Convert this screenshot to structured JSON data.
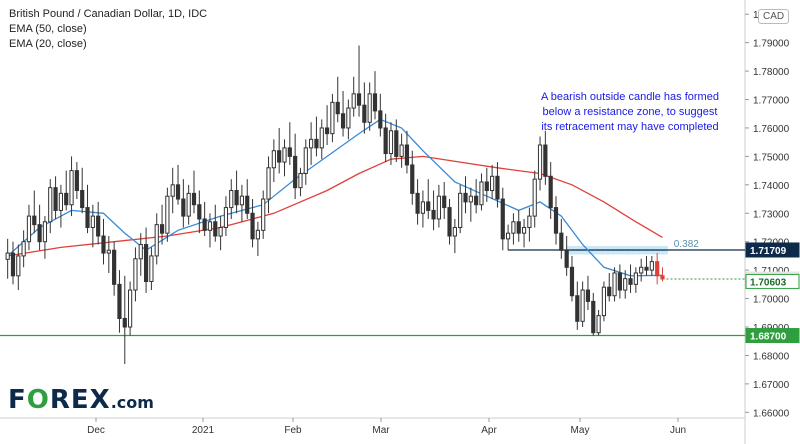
{
  "title": "British Pound / Canadian Dollar, 1D, IDC",
  "currency_badge": "CAD",
  "indicators": [
    "EMA (50, close)",
    "EMA (20, close)"
  ],
  "annotation": "A bearish outside candle has formed below a resistance zone, to suggest its retracement may have completed",
  "fib_label": "0.382",
  "logo": {
    "pre": "F",
    "o": "O",
    "post": "REX",
    "suffix": ".com"
  },
  "colors": {
    "up": "#333333",
    "down": "#333333",
    "ema50": "#e0403a",
    "ema20": "#3a8ad6",
    "resistance": "#0d2a4a",
    "support": "#2e9e3e",
    "last": "#e0403a",
    "zone": "#9ad0ec",
    "annotation": "#1a1ae6"
  },
  "chart_data": {
    "type": "candlestick",
    "x_labels": [
      "Dec",
      "2021",
      "Feb",
      "Mar",
      "Apr",
      "May",
      "Jun"
    ],
    "y_ticks": [
      1.66,
      1.67,
      1.68,
      1.69,
      1.7,
      1.71,
      1.72,
      1.73,
      1.74,
      1.75,
      1.76,
      1.77,
      1.78,
      1.79,
      1.8
    ],
    "ylim": [
      1.658,
      1.805
    ],
    "candle_count": 139,
    "candles": [
      {
        "i": 0,
        "o": 1.7138,
        "h": 1.721,
        "l": 1.707,
        "c": 1.716
      },
      {
        "i": 1,
        "o": 1.716,
        "h": 1.72,
        "l": 1.705,
        "c": 1.708
      },
      {
        "i": 2,
        "o": 1.708,
        "h": 1.719,
        "l": 1.703,
        "c": 1.715
      },
      {
        "i": 3,
        "o": 1.715,
        "h": 1.724,
        "l": 1.711,
        "c": 1.72
      },
      {
        "i": 4,
        "o": 1.72,
        "h": 1.733,
        "l": 1.717,
        "c": 1.729
      },
      {
        "i": 5,
        "o": 1.729,
        "h": 1.738,
        "l": 1.723,
        "c": 1.726
      },
      {
        "i": 6,
        "o": 1.726,
        "h": 1.733,
        "l": 1.717,
        "c": 1.72
      },
      {
        "i": 7,
        "o": 1.72,
        "h": 1.729,
        "l": 1.714,
        "c": 1.727
      },
      {
        "i": 8,
        "o": 1.727,
        "h": 1.742,
        "l": 1.723,
        "c": 1.739
      },
      {
        "i": 9,
        "o": 1.739,
        "h": 1.743,
        "l": 1.728,
        "c": 1.731
      },
      {
        "i": 10,
        "o": 1.731,
        "h": 1.74,
        "l": 1.725,
        "c": 1.737
      },
      {
        "i": 11,
        "o": 1.737,
        "h": 1.745,
        "l": 1.731,
        "c": 1.733
      },
      {
        "i": 12,
        "o": 1.733,
        "h": 1.75,
        "l": 1.729,
        "c": 1.745
      },
      {
        "i": 13,
        "o": 1.745,
        "h": 1.748,
        "l": 1.735,
        "c": 1.738
      },
      {
        "i": 14,
        "o": 1.738,
        "h": 1.746,
        "l": 1.73,
        "c": 1.732
      },
      {
        "i": 15,
        "o": 1.732,
        "h": 1.74,
        "l": 1.723,
        "c": 1.725
      },
      {
        "i": 16,
        "o": 1.725,
        "h": 1.733,
        "l": 1.718,
        "c": 1.729
      },
      {
        "i": 17,
        "o": 1.729,
        "h": 1.734,
        "l": 1.719,
        "c": 1.722
      },
      {
        "i": 18,
        "o": 1.722,
        "h": 1.728,
        "l": 1.712,
        "c": 1.716
      },
      {
        "i": 19,
        "o": 1.716,
        "h": 1.722,
        "l": 1.709,
        "c": 1.717
      },
      {
        "i": 20,
        "o": 1.717,
        "h": 1.72,
        "l": 1.701,
        "c": 1.705
      },
      {
        "i": 21,
        "o": 1.705,
        "h": 1.71,
        "l": 1.688,
        "c": 1.693
      },
      {
        "i": 22,
        "o": 1.693,
        "h": 1.708,
        "l": 1.677,
        "c": 1.69
      },
      {
        "i": 23,
        "o": 1.69,
        "h": 1.706,
        "l": 1.687,
        "c": 1.703
      },
      {
        "i": 24,
        "o": 1.703,
        "h": 1.718,
        "l": 1.699,
        "c": 1.714
      },
      {
        "i": 25,
        "o": 1.714,
        "h": 1.723,
        "l": 1.708,
        "c": 1.719
      },
      {
        "i": 26,
        "o": 1.719,
        "h": 1.725,
        "l": 1.702,
        "c": 1.706
      },
      {
        "i": 27,
        "o": 1.706,
        "h": 1.718,
        "l": 1.703,
        "c": 1.715
      },
      {
        "i": 28,
        "o": 1.715,
        "h": 1.73,
        "l": 1.712,
        "c": 1.726
      },
      {
        "i": 29,
        "o": 1.726,
        "h": 1.733,
        "l": 1.719,
        "c": 1.723
      },
      {
        "i": 30,
        "o": 1.723,
        "h": 1.739,
        "l": 1.72,
        "c": 1.736
      },
      {
        "i": 31,
        "o": 1.736,
        "h": 1.746,
        "l": 1.73,
        "c": 1.74
      },
      {
        "i": 32,
        "o": 1.74,
        "h": 1.747,
        "l": 1.733,
        "c": 1.735
      },
      {
        "i": 33,
        "o": 1.735,
        "h": 1.742,
        "l": 1.725,
        "c": 1.729
      },
      {
        "i": 34,
        "o": 1.729,
        "h": 1.74,
        "l": 1.726,
        "c": 1.737
      },
      {
        "i": 35,
        "o": 1.737,
        "h": 1.745,
        "l": 1.73,
        "c": 1.733
      },
      {
        "i": 36,
        "o": 1.733,
        "h": 1.738,
        "l": 1.723,
        "c": 1.728
      },
      {
        "i": 37,
        "o": 1.728,
        "h": 1.734,
        "l": 1.722,
        "c": 1.724
      },
      {
        "i": 38,
        "o": 1.724,
        "h": 1.73,
        "l": 1.718,
        "c": 1.727
      },
      {
        "i": 39,
        "o": 1.727,
        "h": 1.733,
        "l": 1.72,
        "c": 1.722
      },
      {
        "i": 40,
        "o": 1.722,
        "h": 1.729,
        "l": 1.717,
        "c": 1.725
      },
      {
        "i": 41,
        "o": 1.725,
        "h": 1.736,
        "l": 1.722,
        "c": 1.732
      },
      {
        "i": 42,
        "o": 1.732,
        "h": 1.742,
        "l": 1.728,
        "c": 1.738
      },
      {
        "i": 43,
        "o": 1.738,
        "h": 1.745,
        "l": 1.73,
        "c": 1.733
      },
      {
        "i": 44,
        "o": 1.733,
        "h": 1.74,
        "l": 1.727,
        "c": 1.736
      },
      {
        "i": 45,
        "o": 1.736,
        "h": 1.742,
        "l": 1.728,
        "c": 1.73
      },
      {
        "i": 46,
        "o": 1.73,
        "h": 1.735,
        "l": 1.718,
        "c": 1.721
      },
      {
        "i": 47,
        "o": 1.721,
        "h": 1.727,
        "l": 1.715,
        "c": 1.724
      },
      {
        "i": 48,
        "o": 1.724,
        "h": 1.738,
        "l": 1.721,
        "c": 1.735
      },
      {
        "i": 49,
        "o": 1.735,
        "h": 1.75,
        "l": 1.73,
        "c": 1.746
      },
      {
        "i": 50,
        "o": 1.746,
        "h": 1.756,
        "l": 1.741,
        "c": 1.752
      },
      {
        "i": 51,
        "o": 1.752,
        "h": 1.76,
        "l": 1.744,
        "c": 1.748
      },
      {
        "i": 52,
        "o": 1.748,
        "h": 1.756,
        "l": 1.743,
        "c": 1.753
      },
      {
        "i": 53,
        "o": 1.753,
        "h": 1.762,
        "l": 1.747,
        "c": 1.75
      },
      {
        "i": 54,
        "o": 1.75,
        "h": 1.758,
        "l": 1.735,
        "c": 1.739
      },
      {
        "i": 55,
        "o": 1.739,
        "h": 1.746,
        "l": 1.736,
        "c": 1.744
      },
      {
        "i": 56,
        "o": 1.744,
        "h": 1.756,
        "l": 1.74,
        "c": 1.753
      },
      {
        "i": 57,
        "o": 1.753,
        "h": 1.762,
        "l": 1.747,
        "c": 1.756
      },
      {
        "i": 58,
        "o": 1.756,
        "h": 1.764,
        "l": 1.75,
        "c": 1.753
      },
      {
        "i": 59,
        "o": 1.753,
        "h": 1.763,
        "l": 1.749,
        "c": 1.76
      },
      {
        "i": 60,
        "o": 1.76,
        "h": 1.768,
        "l": 1.754,
        "c": 1.758
      },
      {
        "i": 61,
        "o": 1.758,
        "h": 1.772,
        "l": 1.755,
        "c": 1.769
      },
      {
        "i": 62,
        "o": 1.769,
        "h": 1.778,
        "l": 1.762,
        "c": 1.765
      },
      {
        "i": 63,
        "o": 1.765,
        "h": 1.773,
        "l": 1.757,
        "c": 1.76
      },
      {
        "i": 64,
        "o": 1.76,
        "h": 1.77,
        "l": 1.756,
        "c": 1.767
      },
      {
        "i": 65,
        "o": 1.767,
        "h": 1.778,
        "l": 1.764,
        "c": 1.772
      },
      {
        "i": 66,
        "o": 1.772,
        "h": 1.789,
        "l": 1.764,
        "c": 1.768
      },
      {
        "i": 67,
        "o": 1.768,
        "h": 1.776,
        "l": 1.758,
        "c": 1.762
      },
      {
        "i": 68,
        "o": 1.762,
        "h": 1.776,
        "l": 1.759,
        "c": 1.772
      },
      {
        "i": 69,
        "o": 1.772,
        "h": 1.78,
        "l": 1.763,
        "c": 1.766
      },
      {
        "i": 70,
        "o": 1.766,
        "h": 1.772,
        "l": 1.757,
        "c": 1.76
      },
      {
        "i": 71,
        "o": 1.76,
        "h": 1.765,
        "l": 1.748,
        "c": 1.751
      },
      {
        "i": 72,
        "o": 1.751,
        "h": 1.762,
        "l": 1.747,
        "c": 1.759
      },
      {
        "i": 73,
        "o": 1.759,
        "h": 1.763,
        "l": 1.748,
        "c": 1.75
      },
      {
        "i": 74,
        "o": 1.75,
        "h": 1.758,
        "l": 1.746,
        "c": 1.754
      },
      {
        "i": 75,
        "o": 1.754,
        "h": 1.759,
        "l": 1.744,
        "c": 1.747
      },
      {
        "i": 76,
        "o": 1.747,
        "h": 1.752,
        "l": 1.733,
        "c": 1.737
      },
      {
        "i": 77,
        "o": 1.737,
        "h": 1.742,
        "l": 1.726,
        "c": 1.73
      },
      {
        "i": 78,
        "o": 1.73,
        "h": 1.738,
        "l": 1.725,
        "c": 1.734
      },
      {
        "i": 79,
        "o": 1.734,
        "h": 1.742,
        "l": 1.728,
        "c": 1.731
      },
      {
        "i": 80,
        "o": 1.731,
        "h": 1.738,
        "l": 1.724,
        "c": 1.728
      },
      {
        "i": 81,
        "o": 1.728,
        "h": 1.74,
        "l": 1.725,
        "c": 1.736
      },
      {
        "i": 82,
        "o": 1.736,
        "h": 1.741,
        "l": 1.728,
        "c": 1.732
      },
      {
        "i": 83,
        "o": 1.732,
        "h": 1.735,
        "l": 1.719,
        "c": 1.722
      },
      {
        "i": 84,
        "o": 1.722,
        "h": 1.728,
        "l": 1.716,
        "c": 1.725
      },
      {
        "i": 85,
        "o": 1.725,
        "h": 1.74,
        "l": 1.723,
        "c": 1.737
      },
      {
        "i": 86,
        "o": 1.737,
        "h": 1.743,
        "l": 1.73,
        "c": 1.734
      },
      {
        "i": 87,
        "o": 1.734,
        "h": 1.739,
        "l": 1.727,
        "c": 1.736
      },
      {
        "i": 88,
        "o": 1.736,
        "h": 1.742,
        "l": 1.73,
        "c": 1.733
      },
      {
        "i": 89,
        "o": 1.733,
        "h": 1.744,
        "l": 1.731,
        "c": 1.741
      },
      {
        "i": 90,
        "o": 1.741,
        "h": 1.746,
        "l": 1.734,
        "c": 1.738
      },
      {
        "i": 91,
        "o": 1.738,
        "h": 1.747,
        "l": 1.735,
        "c": 1.743
      },
      {
        "i": 92,
        "o": 1.743,
        "h": 1.748,
        "l": 1.732,
        "c": 1.735
      },
      {
        "i": 93,
        "o": 1.735,
        "h": 1.739,
        "l": 1.717,
        "c": 1.721
      },
      {
        "i": 94,
        "o": 1.721,
        "h": 1.726,
        "l": 1.717,
        "c": 1.723
      },
      {
        "i": 95,
        "o": 1.723,
        "h": 1.73,
        "l": 1.719,
        "c": 1.727
      },
      {
        "i": 96,
        "o": 1.727,
        "h": 1.731,
        "l": 1.72,
        "c": 1.723
      },
      {
        "i": 97,
        "o": 1.723,
        "h": 1.728,
        "l": 1.718,
        "c": 1.725
      },
      {
        "i": 98,
        "o": 1.725,
        "h": 1.732,
        "l": 1.72,
        "c": 1.729
      },
      {
        "i": 99,
        "o": 1.729,
        "h": 1.745,
        "l": 1.725,
        "c": 1.742
      },
      {
        "i": 100,
        "o": 1.742,
        "h": 1.757,
        "l": 1.738,
        "c": 1.754
      },
      {
        "i": 101,
        "o": 1.754,
        "h": 1.759,
        "l": 1.74,
        "c": 1.743
      },
      {
        "i": 102,
        "o": 1.743,
        "h": 1.748,
        "l": 1.728,
        "c": 1.732
      },
      {
        "i": 103,
        "o": 1.732,
        "h": 1.736,
        "l": 1.719,
        "c": 1.723
      },
      {
        "i": 104,
        "o": 1.723,
        "h": 1.728,
        "l": 1.714,
        "c": 1.717
      },
      {
        "i": 105,
        "o": 1.717,
        "h": 1.722,
        "l": 1.708,
        "c": 1.711
      },
      {
        "i": 106,
        "o": 1.711,
        "h": 1.715,
        "l": 1.699,
        "c": 1.701
      },
      {
        "i": 107,
        "o": 1.701,
        "h": 1.706,
        "l": 1.689,
        "c": 1.692
      },
      {
        "i": 108,
        "o": 1.692,
        "h": 1.706,
        "l": 1.69,
        "c": 1.703
      },
      {
        "i": 109,
        "o": 1.703,
        "h": 1.708,
        "l": 1.696,
        "c": 1.699
      },
      {
        "i": 110,
        "o": 1.699,
        "h": 1.702,
        "l": 1.687,
        "c": 1.688
      },
      {
        "i": 111,
        "o": 1.688,
        "h": 1.696,
        "l": 1.687,
        "c": 1.694
      },
      {
        "i": 112,
        "o": 1.694,
        "h": 1.706,
        "l": 1.692,
        "c": 1.704
      },
      {
        "i": 113,
        "o": 1.704,
        "h": 1.709,
        "l": 1.699,
        "c": 1.701
      },
      {
        "i": 114,
        "o": 1.701,
        "h": 1.711,
        "l": 1.699,
        "c": 1.709
      },
      {
        "i": 115,
        "o": 1.709,
        "h": 1.712,
        "l": 1.7,
        "c": 1.703
      },
      {
        "i": 116,
        "o": 1.703,
        "h": 1.71,
        "l": 1.7,
        "c": 1.707
      },
      {
        "i": 117,
        "o": 1.707,
        "h": 1.712,
        "l": 1.702,
        "c": 1.705
      },
      {
        "i": 118,
        "o": 1.705,
        "h": 1.711,
        "l": 1.702,
        "c": 1.709
      },
      {
        "i": 119,
        "o": 1.709,
        "h": 1.714,
        "l": 1.706,
        "c": 1.711
      },
      {
        "i": 120,
        "o": 1.711,
        "h": 1.715,
        "l": 1.708,
        "c": 1.71
      },
      {
        "i": 121,
        "o": 1.71,
        "h": 1.715,
        "l": 1.708,
        "c": 1.713
      },
      {
        "i": 122,
        "o": 1.713,
        "h": 1.716,
        "l": 1.705,
        "c": 1.708
      },
      {
        "i": 123,
        "o": 1.708,
        "h": 1.711,
        "l": 1.706,
        "c": 1.7069
      }
    ],
    "ema50": [
      [
        0,
        1.715
      ],
      [
        10,
        1.718
      ],
      [
        20,
        1.72
      ],
      [
        30,
        1.722
      ],
      [
        40,
        1.725
      ],
      [
        50,
        1.73
      ],
      [
        60,
        1.738
      ],
      [
        66,
        1.744
      ],
      [
        72,
        1.749
      ],
      [
        78,
        1.75
      ],
      [
        85,
        1.748
      ],
      [
        92,
        1.746
      ],
      [
        100,
        1.744
      ],
      [
        106,
        1.74
      ],
      [
        112,
        1.734
      ],
      [
        118,
        1.727
      ],
      [
        123,
        1.7215
      ]
    ],
    "ema20": [
      [
        0,
        1.715
      ],
      [
        6,
        1.725
      ],
      [
        12,
        1.731
      ],
      [
        18,
        1.73
      ],
      [
        22,
        1.723
      ],
      [
        26,
        1.717
      ],
      [
        32,
        1.724
      ],
      [
        40,
        1.729
      ],
      [
        48,
        1.733
      ],
      [
        54,
        1.742
      ],
      [
        60,
        1.75
      ],
      [
        66,
        1.758
      ],
      [
        70,
        1.763
      ],
      [
        74,
        1.76
      ],
      [
        78,
        1.752
      ],
      [
        84,
        1.741
      ],
      [
        90,
        1.736
      ],
      [
        96,
        1.731
      ],
      [
        100,
        1.734
      ],
      [
        104,
        1.729
      ],
      [
        108,
        1.719
      ],
      [
        112,
        1.711
      ],
      [
        117,
        1.708
      ],
      [
        123,
        1.7082
      ]
    ],
    "resistance_zone": [
      1.7155,
      1.7185
    ],
    "fib_level": 1.717,
    "levels": [
      {
        "name": "resistance",
        "value": 1.71709,
        "label": "1.71709"
      },
      {
        "name": "current",
        "value": 1.70687,
        "label": "1.70687"
      },
      {
        "name": "bid",
        "value": 1.70603,
        "label": "1.70603"
      },
      {
        "name": "support",
        "value": 1.687,
        "label": "1.68700"
      }
    ]
  }
}
